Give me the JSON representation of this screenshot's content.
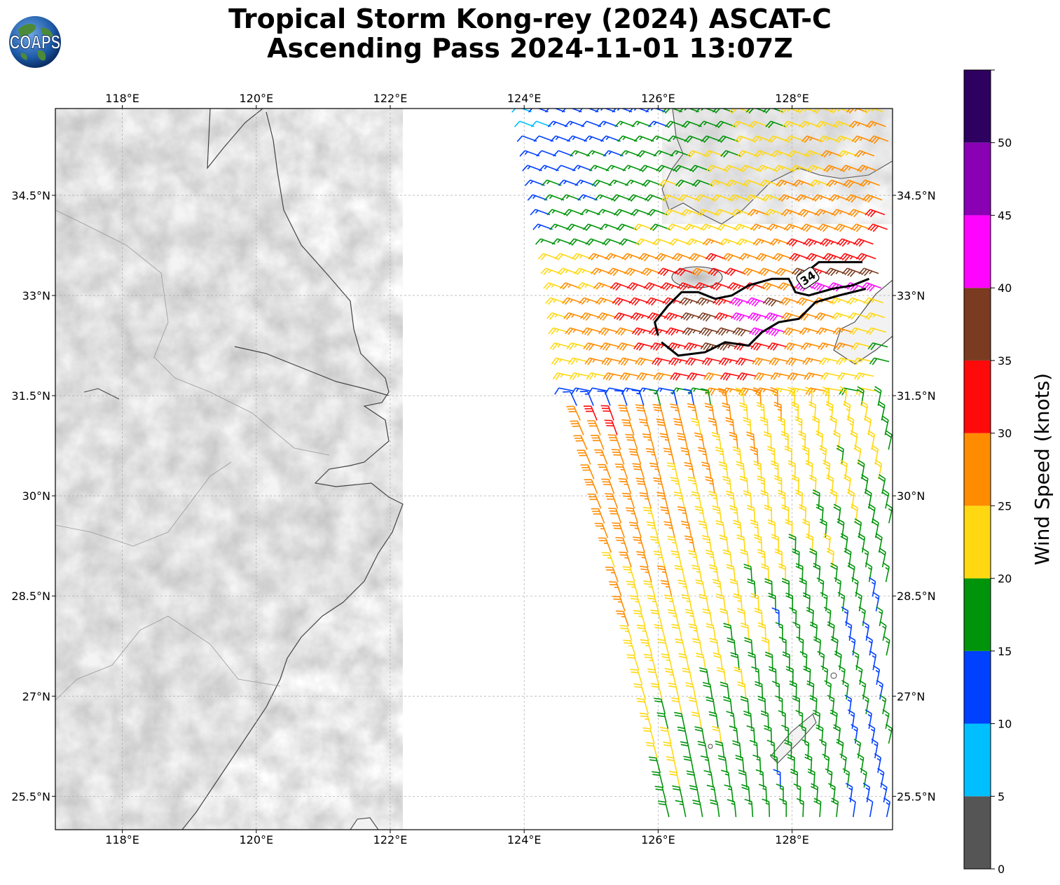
{
  "title": {
    "line1": "Tropical Storm Kong-rey (2024) ASCAT-C",
    "line2": "Ascending Pass 2024-11-01 13:07Z"
  },
  "logo": {
    "text": "COAPS",
    "icon": "globe-icon"
  },
  "map": {
    "lon_range": [
      117,
      129.5
    ],
    "lat_range": [
      25,
      35.8
    ],
    "lon_ticks": [
      {
        "value": 118,
        "label": "118°E"
      },
      {
        "value": 120,
        "label": "120°E"
      },
      {
        "value": 122,
        "label": "122°E"
      },
      {
        "value": 124,
        "label": "124°E"
      },
      {
        "value": 126,
        "label": "126°E"
      },
      {
        "value": 128,
        "label": "128°E"
      }
    ],
    "lat_ticks": [
      {
        "value": 34.5,
        "label": "34.5°N"
      },
      {
        "value": 33,
        "label": "33°N"
      },
      {
        "value": 31.5,
        "label": "31.5°N"
      },
      {
        "value": 30,
        "label": "30°N"
      },
      {
        "value": 28.5,
        "label": "28.5°N"
      },
      {
        "value": 27,
        "label": "27°N"
      },
      {
        "value": 25.5,
        "label": "25.5°N"
      }
    ],
    "grid": true,
    "contour_label": "34",
    "contour_34kt": [
      [
        126.0,
        32.4
      ],
      [
        125.95,
        32.6
      ],
      [
        126.15,
        32.85
      ],
      [
        126.35,
        33.05
      ],
      [
        126.6,
        33.05
      ],
      [
        126.85,
        32.95
      ],
      [
        127.1,
        33.0
      ],
      [
        127.35,
        33.15
      ],
      [
        127.7,
        33.25
      ],
      [
        127.95,
        33.25
      ],
      [
        128.05,
        33.05
      ],
      [
        128.25,
        33.0
      ],
      [
        128.6,
        33.1
      ],
      [
        128.9,
        33.15
      ],
      [
        129.15,
        33.25
      ]
    ],
    "contour_34kt_lower": [
      [
        126.05,
        32.3
      ],
      [
        126.3,
        32.1
      ],
      [
        126.7,
        32.15
      ],
      [
        127.0,
        32.3
      ],
      [
        127.35,
        32.25
      ],
      [
        127.55,
        32.45
      ],
      [
        127.8,
        32.6
      ],
      [
        128.1,
        32.65
      ],
      [
        128.35,
        32.9
      ],
      [
        128.7,
        33.0
      ],
      [
        129.1,
        33.1
      ]
    ],
    "contour_34kt_upper": [
      [
        128.15,
        33.3
      ],
      [
        128.4,
        33.5
      ],
      [
        128.8,
        33.5
      ],
      [
        129.05,
        33.5
      ]
    ]
  },
  "wind": {
    "swath_edges": [
      {
        "lat": 35.8,
        "west": 124.0,
        "east": 129.5
      },
      {
        "lat": 33.0,
        "west": 124.5,
        "east": 129.5
      },
      {
        "lat": 31.5,
        "west": 124.65,
        "east": 129.5
      },
      {
        "lat": 30.0,
        "west": 125.0,
        "east": 129.5
      },
      {
        "lat": 28.5,
        "west": 125.35,
        "east": 129.5
      },
      {
        "lat": 27.0,
        "west": 125.7,
        "east": 129.5
      },
      {
        "lat": 25.0,
        "west": 126.1,
        "east": 129.5
      }
    ]
  },
  "colorbar": {
    "label": "Wind Speed (knots)",
    "ticks": [
      "0",
      "5",
      "10",
      "15",
      "20",
      "25",
      "30",
      "35",
      "40",
      "45",
      "50"
    ],
    "bins": [
      {
        "min": 0,
        "max": 5,
        "color": "#555555"
      },
      {
        "min": 5,
        "max": 10,
        "color": "#00bfff"
      },
      {
        "min": 10,
        "max": 15,
        "color": "#0040ff"
      },
      {
        "min": 15,
        "max": 20,
        "color": "#00940a"
      },
      {
        "min": 20,
        "max": 25,
        "color": "#ffd812"
      },
      {
        "min": 25,
        "max": 30,
        "color": "#ff8c00"
      },
      {
        "min": 30,
        "max": 35,
        "color": "#ff0a0a"
      },
      {
        "min": 35,
        "max": 40,
        "color": "#7a3b20"
      },
      {
        "min": 40,
        "max": 45,
        "color": "#ff05ff"
      },
      {
        "min": 45,
        "max": 50,
        "color": "#8a00b5"
      },
      {
        "min": 50,
        "max": 55,
        "color": "#2e0060"
      }
    ]
  }
}
